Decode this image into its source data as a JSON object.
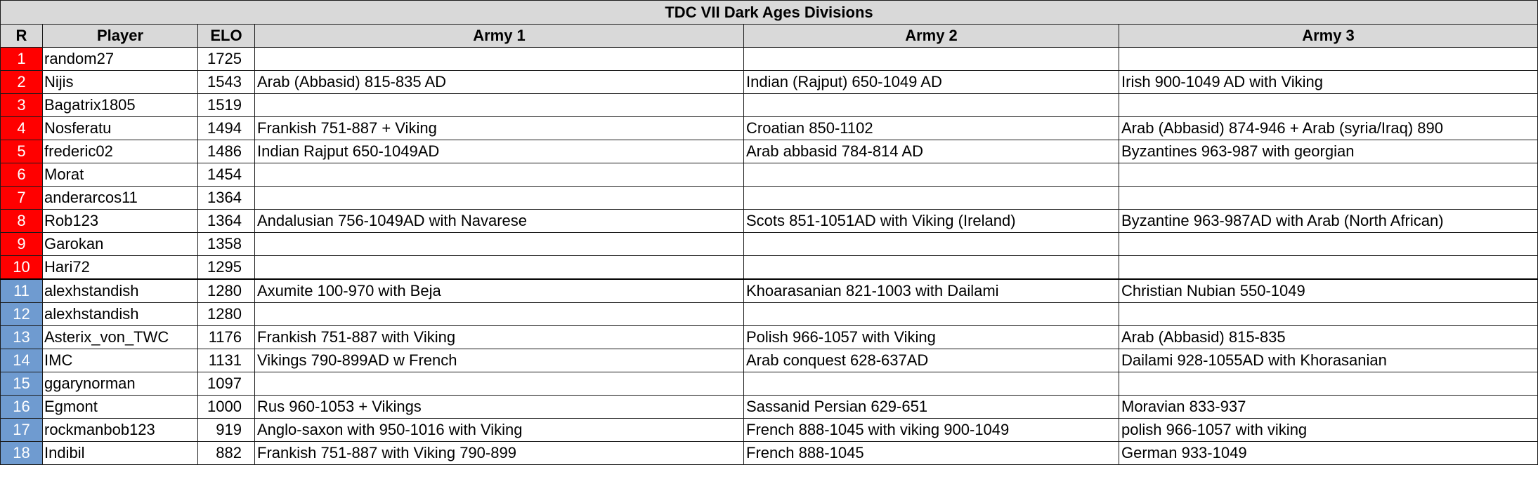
{
  "title": "TDC VII Dark Ages Divisions",
  "headers": {
    "rank": "R",
    "player": "Player",
    "elo": "ELO",
    "army1": "Army 1",
    "army2": "Army 2",
    "army3": "Army 3"
  },
  "colors": {
    "top_division": "#ff0000",
    "second_division": "#6f9bd0",
    "header_bg": "#d9d9d9"
  },
  "rows": [
    {
      "r": "1",
      "player": "random27",
      "elo": "1725",
      "army1": "",
      "army2": "",
      "army3": "",
      "division": "red"
    },
    {
      "r": "2",
      "player": "Nijis",
      "elo": "1543",
      "army1": "Arab (Abbasid) 815-835 AD",
      "army2": "Indian (Rajput) 650-1049 AD",
      "army3": "Irish 900-1049 AD with Viking",
      "division": "red"
    },
    {
      "r": "3",
      "player": "Bagatrix1805",
      "elo": "1519",
      "army1": "",
      "army2": "",
      "army3": "",
      "division": "red"
    },
    {
      "r": "4",
      "player": "Nosferatu",
      "elo": "1494",
      "army1": "Frankish 751-887 + Viking",
      "army2": "Croatian 850-1102",
      "army3": "Arab (Abbasid) 874-946 + Arab (syria/Iraq) 890",
      "division": "red"
    },
    {
      "r": "5",
      "player": "frederic02",
      "elo": "1486",
      "army1": "Indian Rajput 650-1049AD",
      "army2": "Arab abbasid 784-814 AD",
      "army3": "Byzantines 963-987 with georgian",
      "division": "red"
    },
    {
      "r": "6",
      "player": "Morat",
      "elo": "1454",
      "army1": "",
      "army2": "",
      "army3": "",
      "division": "red"
    },
    {
      "r": "7",
      "player": "anderarcos11",
      "elo": "1364",
      "army1": "",
      "army2": "",
      "army3": "",
      "division": "red"
    },
    {
      "r": "8",
      "player": "Rob123",
      "elo": "1364",
      "army1": "Andalusian 756-1049AD with Navarese",
      "army2": "Scots 851-1051AD with Viking (Ireland)",
      "army3": "Byzantine 963-987AD with Arab (North African)",
      "division": "red"
    },
    {
      "r": "9",
      "player": "Garokan",
      "elo": "1358",
      "army1": "",
      "army2": "",
      "army3": "",
      "division": "red"
    },
    {
      "r": "10",
      "player": "Hari72",
      "elo": "1295",
      "army1": "",
      "army2": "",
      "army3": "",
      "division": "red"
    },
    {
      "r": "11",
      "player": "alexhstandish",
      "elo": "1280",
      "army1": "Axumite 100-970 with Beja",
      "army2": "Khoarasanian 821-1003 with Dailami",
      "army3": "Christian Nubian 550-1049",
      "division": "blue"
    },
    {
      "r": "12",
      "player": "alexhstandish",
      "elo": "1280",
      "army1": "",
      "army2": "",
      "army3": "",
      "division": "blue"
    },
    {
      "r": "13",
      "player": "Asterix_von_TWC",
      "elo": "1176",
      "army1": "Frankish 751-887 with Viking",
      "army2": "Polish 966-1057 with Viking",
      "army3": "Arab (Abbasid) 815-835",
      "division": "blue"
    },
    {
      "r": "14",
      "player": "IMC",
      "elo": "1131",
      "army1": "Vikings 790-899AD w French",
      "army2": "Arab conquest 628-637AD",
      "army3": "Dailami 928-1055AD with Khorasanian",
      "division": "blue"
    },
    {
      "r": "15",
      "player": "ggarynorman",
      "elo": "1097",
      "army1": "",
      "army2": "",
      "army3": "",
      "division": "blue"
    },
    {
      "r": "16",
      "player": "Egmont",
      "elo": "1000",
      "army1": "Rus 960-1053 + Vikings",
      "army2": "Sassanid Persian 629-651",
      "army3": "Moravian 833-937",
      "division": "blue"
    },
    {
      "r": "17",
      "player": "rockmanbob123",
      "elo": "919",
      "army1": "Anglo-saxon with 950-1016 with Viking",
      "army2": "French 888-1045 with viking 900-1049",
      "army3": "polish 966-1057 with viking",
      "division": "blue"
    },
    {
      "r": "18",
      "player": "Indibil",
      "elo": "882",
      "army1": "Frankish 751-887 with Viking 790-899",
      "army2": "French 888-1045",
      "army3": "German 933-1049",
      "division": "blue"
    }
  ]
}
